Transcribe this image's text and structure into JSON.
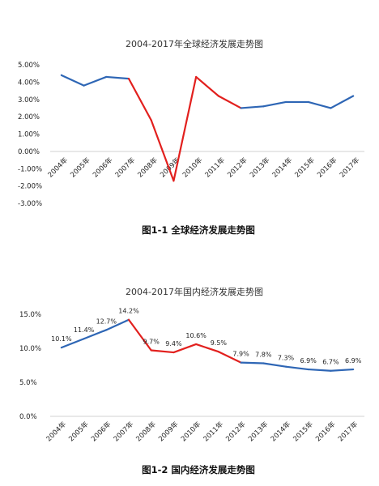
{
  "chart_data": [
    {
      "type": "line",
      "title": "2004-2017年全球经济发展走势图",
      "caption": "图1-1 全球经济发展走势图",
      "categories": [
        "2004年",
        "2005年",
        "2006年",
        "2007年",
        "2008年",
        "2009年",
        "2010年",
        "2011年",
        "2012年",
        "2013年",
        "2014年",
        "2015年",
        "2016年",
        "2017年"
      ],
      "values": [
        4.4,
        3.8,
        4.3,
        4.2,
        1.8,
        -1.7,
        4.3,
        3.2,
        2.5,
        2.6,
        2.85,
        2.85,
        2.5,
        3.2
      ],
      "highlight_range": [
        3,
        8
      ],
      "yticks": [
        "5.00%",
        "4.00%",
        "3.00%",
        "2.00%",
        "1.00%",
        "0.00%",
        "-1.00%",
        "-2.00%",
        "-3.00%"
      ],
      "ylim": [
        -3,
        5
      ],
      "colors": {
        "normal": "#2e66b5",
        "highlight": "#e2201e"
      },
      "grid": false
    },
    {
      "type": "line",
      "title": "2004-2017年国内经济发展走势图",
      "caption": "图1-2 国内经济发展走势图",
      "categories": [
        "2004年",
        "2005年",
        "2006年",
        "2007年",
        "2008年",
        "2009年",
        "2010年",
        "2011年",
        "2012年",
        "2013年",
        "2014年",
        "2015年",
        "2016年",
        "2017年"
      ],
      "values": [
        10.1,
        11.4,
        12.7,
        14.2,
        9.7,
        9.4,
        10.6,
        9.5,
        7.9,
        7.8,
        7.3,
        6.9,
        6.7,
        6.9
      ],
      "data_labels": [
        "10.1%",
        "11.4%",
        "12.7%",
        "14.2%",
        "9.7%",
        "9.4%",
        "10.6%",
        "9.5%",
        "7.9%",
        "7.8%",
        "7.3%",
        "6.9%",
        "6.7%",
        "6.9%"
      ],
      "highlight_range": [
        3,
        8
      ],
      "yticks": [
        "15.0%",
        "10.0%",
        "5.0%",
        "0.0%"
      ],
      "ylim": [
        0,
        15
      ],
      "colors": {
        "normal": "#2e66b5",
        "highlight": "#e2201e"
      },
      "grid": false
    }
  ]
}
